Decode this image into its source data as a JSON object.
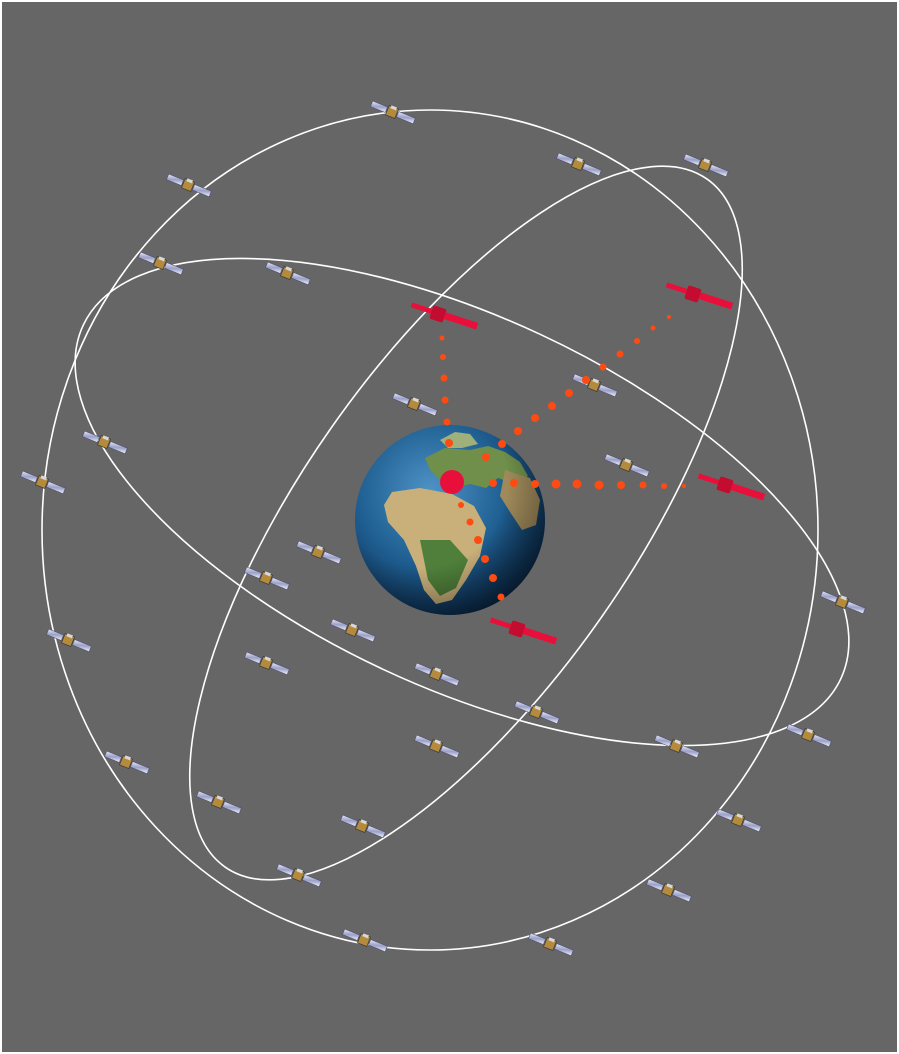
{
  "diagram": {
    "background_color": "#666666",
    "border_color": "#ffffff",
    "orbit_color": "#ffffff",
    "highlight_color": "#e8103a",
    "signal_color": "#ff4a12",
    "orbits": [
      {
        "name": "orbit-plane-a"
      },
      {
        "name": "orbit-plane-b"
      },
      {
        "name": "orbit-plane-c"
      }
    ],
    "satellite_icon": "satellite-icon",
    "globe_icon": "earth-globe-icon",
    "receiver_icon": "receiver-location-icon",
    "visible_satellite_count": 4
  }
}
